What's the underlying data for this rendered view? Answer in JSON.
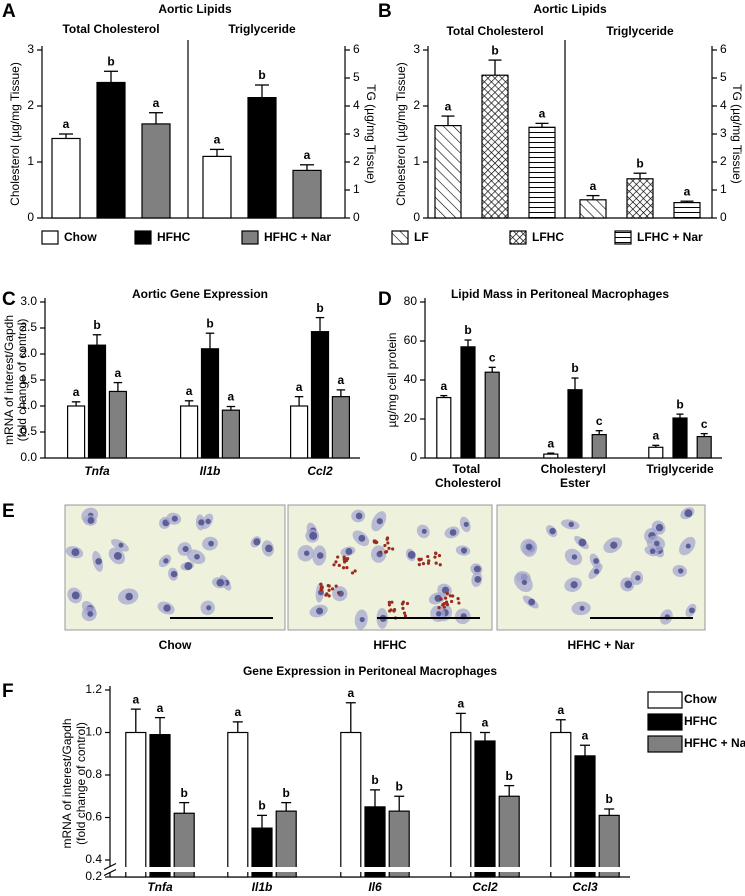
{
  "chart_data": [
    {
      "type": "bar",
      "panel": "A",
      "title": "Aortic Lipids",
      "categories": [
        "Total Cholesterol",
        "Triglyceride"
      ],
      "category_axes": [
        "y",
        "y2"
      ],
      "ylabel": [
        "Cholesterol (µg/mg Tissue)"
      ],
      "ylim": [
        0,
        3
      ],
      "yticks": [
        0,
        1,
        2,
        3
      ],
      "y2label": [
        "TG (µg/mg Tissue)"
      ],
      "y2lim": [
        0,
        6
      ],
      "y2ticks": [
        0,
        1,
        2,
        3,
        4,
        5,
        6
      ],
      "legend": "bottom",
      "series": [
        {
          "name": "Chow",
          "color": "#ffffff",
          "values": [
            1.42,
            2.2
          ],
          "errors": [
            0.08,
            0.25
          ],
          "letters": [
            "a",
            "a"
          ]
        },
        {
          "name": "HFHC",
          "color": "#000000",
          "values": [
            2.42,
            4.3
          ],
          "errors": [
            0.2,
            0.45
          ],
          "letters": [
            "b",
            "b"
          ]
        },
        {
          "name": "HFHC + Nar",
          "color": "#808080",
          "values": [
            1.68,
            1.7
          ],
          "errors": [
            0.2,
            0.2
          ],
          "letters": [
            "a",
            "a"
          ]
        }
      ]
    },
    {
      "type": "bar",
      "panel": "B",
      "title": "Aortic Lipids",
      "categories": [
        "Total Cholesterol",
        "Triglyceride"
      ],
      "category_axes": [
        "y",
        "y2"
      ],
      "ylabel": [
        "Cholesterol (µg/mg Tissue)"
      ],
      "ylim": [
        0,
        3
      ],
      "yticks": [
        0,
        1,
        2,
        3
      ],
      "y2label": [
        "TG (µg/mg Tissue)"
      ],
      "y2lim": [
        0,
        6
      ],
      "y2ticks": [
        0,
        1,
        2,
        3,
        4,
        5,
        6
      ],
      "legend": "bottom",
      "series": [
        {
          "name": "LF",
          "color": "#ffffff",
          "pattern": "diagonal",
          "values": [
            1.65,
            0.65
          ],
          "errors": [
            0.17,
            0.15
          ],
          "letters": [
            "a",
            "a"
          ]
        },
        {
          "name": "LFHC",
          "color": "#ffffff",
          "pattern": "crosshatch",
          "values": [
            2.55,
            1.4
          ],
          "errors": [
            0.27,
            0.2
          ],
          "letters": [
            "b",
            "b"
          ]
        },
        {
          "name": "LFHC + Nar",
          "color": "#ffffff",
          "pattern": "horizontal",
          "values": [
            1.62,
            0.55
          ],
          "errors": [
            0.07,
            0.05
          ],
          "letters": [
            "a",
            "a"
          ]
        }
      ]
    },
    {
      "type": "bar",
      "panel": "C",
      "title": "Aortic Gene Expression",
      "categories": [
        "Tnfa",
        "Il1b",
        "Ccl2"
      ],
      "ylabel": [
        "mRNA of interest/Gapdh",
        "(fold change of control)"
      ],
      "ylim": [
        0,
        3
      ],
      "yticks": [
        {
          "value": 0,
          "label": "0.0"
        },
        0.5,
        {
          "value": 1,
          "label": "1.0"
        },
        1.5,
        {
          "value": 2,
          "label": "2.0"
        },
        2.5,
        {
          "value": 3,
          "label": "3.0"
        }
      ],
      "series": [
        {
          "name": "Chow",
          "color": "#ffffff",
          "values": [
            1.0,
            1.0,
            1.0
          ],
          "errors": [
            0.08,
            0.1,
            0.18
          ],
          "letters": [
            "a",
            "a",
            "a"
          ]
        },
        {
          "name": "HFHC",
          "color": "#000000",
          "values": [
            2.17,
            2.1,
            2.43
          ],
          "errors": [
            0.2,
            0.3,
            0.27
          ],
          "letters": [
            "b",
            "b",
            "b"
          ]
        },
        {
          "name": "HFHC + Nar",
          "color": "#808080",
          "values": [
            1.28,
            0.92,
            1.18
          ],
          "errors": [
            0.17,
            0.07,
            0.13
          ],
          "letters": [
            "a",
            "a",
            "a"
          ]
        }
      ]
    },
    {
      "type": "bar",
      "panel": "D",
      "title": "Lipid Mass in Peritoneal Macrophages",
      "categories": [
        "Total Cholesterol",
        "Cholesteryl Ester",
        "Triglyceride"
      ],
      "ylabel": [
        "µg/mg cell protein"
      ],
      "ylim": [
        0,
        80
      ],
      "yticks": [
        0,
        20,
        40,
        60,
        80
      ],
      "series": [
        {
          "name": "Chow",
          "color": "#ffffff",
          "values": [
            31,
            2,
            5.5
          ],
          "errors": [
            1,
            0.5,
            1
          ],
          "letters": [
            "a",
            "a",
            "a"
          ]
        },
        {
          "name": "HFHC",
          "color": "#000000",
          "values": [
            57,
            35,
            20.5
          ],
          "errors": [
            3.5,
            6,
            2
          ],
          "letters": [
            "b",
            "b",
            "b"
          ]
        },
        {
          "name": "HFHC + Nar",
          "color": "#808080",
          "values": [
            44,
            12,
            11
          ],
          "errors": [
            2.5,
            2,
            1.5
          ],
          "letters": [
            "c",
            "c",
            "c"
          ]
        }
      ]
    },
    {
      "type": "bar",
      "panel": "F",
      "title": "Gene Expression in Peritoneal Macrophages",
      "categories": [
        "Tnfa",
        "Il1b",
        "Il6",
        "Ccl2",
        "Ccl3"
      ],
      "ylabel": [
        "mRNA of interest/Gapdh",
        "(fold change of control)"
      ],
      "ylim": [
        0.2,
        1.2
      ],
      "yticks": [
        0.2,
        0.4,
        0.6,
        0.8,
        {
          "value": 1,
          "label": "1.0"
        },
        1.2
      ],
      "axis_break": [
        0.2,
        0.4
      ],
      "legend": "top-right",
      "series": [
        {
          "name": "Chow",
          "color": "#ffffff",
          "values": [
            1.0,
            1.0,
            1.0,
            1.0,
            1.0
          ],
          "errors": [
            0.11,
            0.05,
            0.14,
            0.09,
            0.06
          ],
          "letters": [
            "a",
            "a",
            "a",
            "a",
            "a"
          ]
        },
        {
          "name": "HFHC",
          "color": "#000000",
          "values": [
            0.99,
            0.55,
            0.65,
            0.96,
            0.89
          ],
          "errors": [
            0.08,
            0.06,
            0.08,
            0.04,
            0.05
          ],
          "letters": [
            "a",
            "b",
            "b",
            "a",
            "a"
          ]
        },
        {
          "name": "HFHC + Nar",
          "color": "#808080",
          "values": [
            0.62,
            0.63,
            0.63,
            0.7,
            0.61
          ],
          "errors": [
            0.05,
            0.04,
            0.07,
            0.05,
            0.03
          ],
          "letters": [
            "b",
            "b",
            "b",
            "b",
            "b"
          ]
        }
      ]
    }
  ],
  "micrographs": {
    "panel": "E",
    "labels": [
      "Chow",
      "HFHC",
      "HFHC + Nar"
    ]
  }
}
